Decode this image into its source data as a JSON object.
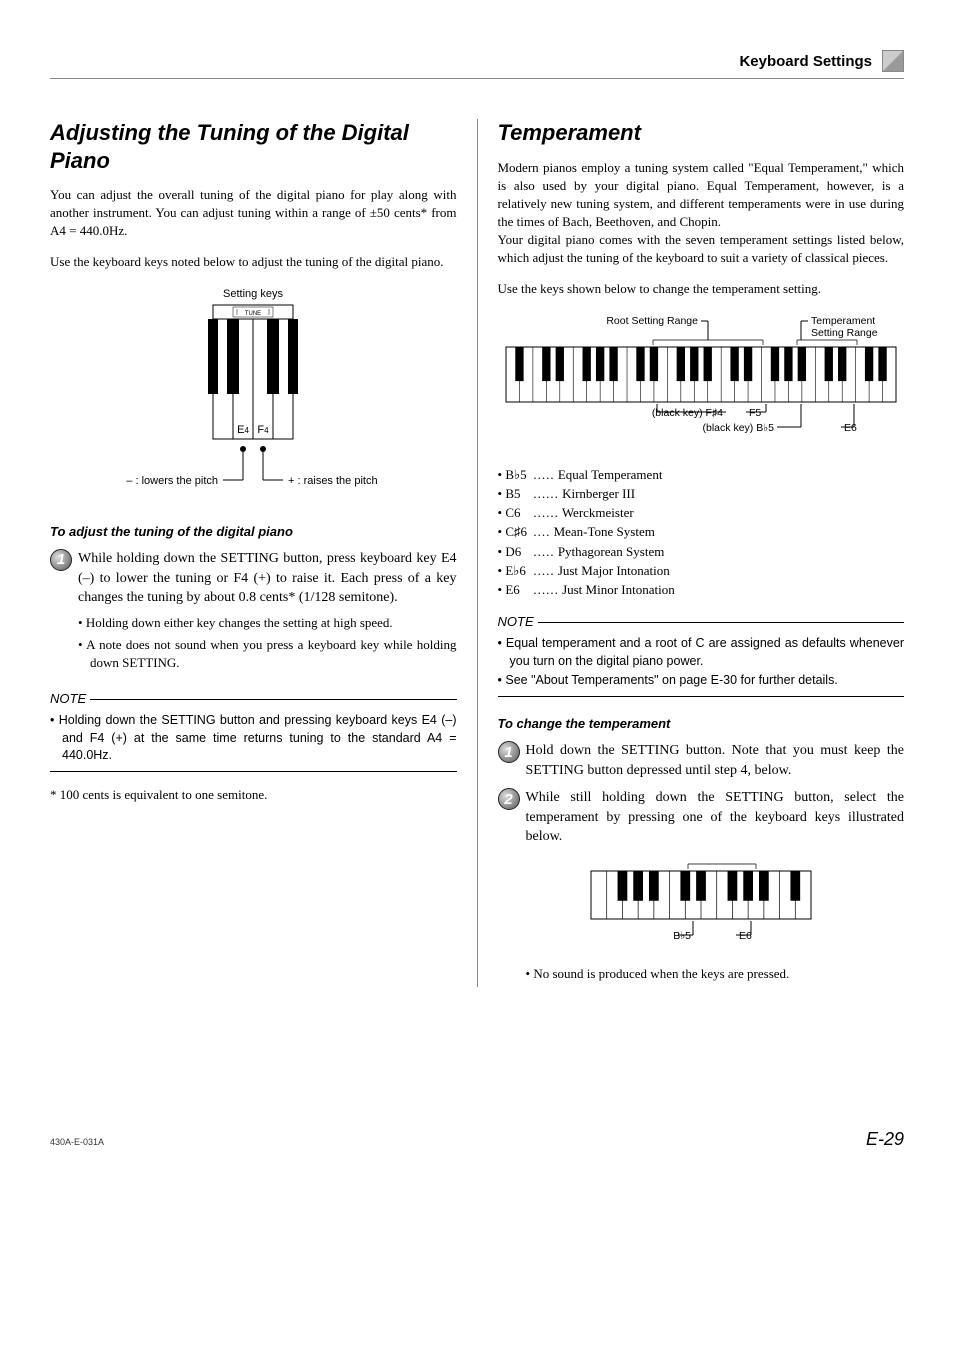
{
  "header": {
    "title": "Keyboard Settings"
  },
  "left": {
    "title": "Adjusting the Tuning of the Digital Piano",
    "intro": "You can adjust the overall tuning of the digital piano for play along with another instrument. You can adjust tuning within a range of ±50 cents* from A4 = 440.0Hz.",
    "use_keys": "Use the keyboard keys noted below to adjust the tuning of the digital piano.",
    "diagram": {
      "setting_keys": "Setting keys",
      "tune_label": "TUNE",
      "e4": "E4",
      "f4": "F4",
      "lowers": "– : lowers the pitch",
      "raises": "+ : raises the pitch"
    },
    "sub_head": "To adjust the tuning of the digital piano",
    "step1": "While holding down the SETTING button, press keyboard key E4 (–) to lower the tuning or F4 (+) to raise it. Each press of a key changes the tuning by about 0.8 cents* (1/128 semitone).",
    "step1_bullets": [
      "Holding down either key changes the setting at high speed.",
      "A note does not sound when you press a keyboard key while holding down SETTING."
    ],
    "note": "Holding down the SETTING button and pressing keyboard keys E4 (–) and F4 (+) at the same time returns tuning to the standard A4 = 440.0Hz.",
    "footnote": "* 100 cents is equivalent to one semitone."
  },
  "right": {
    "title": "Temperament",
    "intro1": "Modern pianos employ a tuning system called \"Equal Temperament,\" which is also used by your digital piano. Equal Temperament, however, is a relatively new tuning system, and different temperaments were in use during the times of Bach, Beethoven, and Chopin.",
    "intro2": "Your digital piano comes with the seven temperament settings listed below, which adjust the tuning of the keyboard to suit a variety of classical pieces.",
    "use_keys": "Use the keys shown below to change the temperament setting.",
    "diagram": {
      "root_label": "Root Setting Range",
      "temp_label": "Temperament Setting Range",
      "black_f4": "(black key) F♯4",
      "f5": "F5",
      "black_bb5": "(black key) B♭5",
      "e6": "E6"
    },
    "temper_list": [
      {
        "key": "B♭5",
        "dots": ".....",
        "name": "Equal Temperament"
      },
      {
        "key": "B5",
        "dots": "......",
        "name": "Kirnberger III"
      },
      {
        "key": "C6",
        "dots": "......",
        "name": "Werckmeister"
      },
      {
        "key": "C♯6",
        "dots": "....",
        "name": "Mean-Tone System"
      },
      {
        "key": "D6",
        "dots": ".....",
        "name": "Pythagorean System"
      },
      {
        "key": "E♭6",
        "dots": ".....",
        "name": "Just Major Intonation"
      },
      {
        "key": "E6",
        "dots": "......",
        "name": "Just Minor Intonation"
      }
    ],
    "note_items": [
      "Equal temperament and a root of C are assigned as defaults whenever you turn on the digital piano power.",
      "See \"About Temperaments\" on page E-30 for further details."
    ],
    "sub_head": "To change the temperament",
    "step1": "Hold down the SETTING button. Note that you must keep the SETTING button depressed until step 4, below.",
    "step2": "While still holding down the SETTING button, select the temperament by pressing one of the keyboard keys illustrated below.",
    "diagram2": {
      "bb5": "B♭5",
      "e6": "E6"
    },
    "step2_bullet": "No sound is produced when the keys are pressed."
  },
  "footer": {
    "left": "430A-E-031A",
    "right": "E-29"
  },
  "note_label": "NOTE",
  "colors": {
    "text": "#000000",
    "rule": "#888888",
    "key_black": "#000000",
    "key_white": "#ffffff"
  }
}
